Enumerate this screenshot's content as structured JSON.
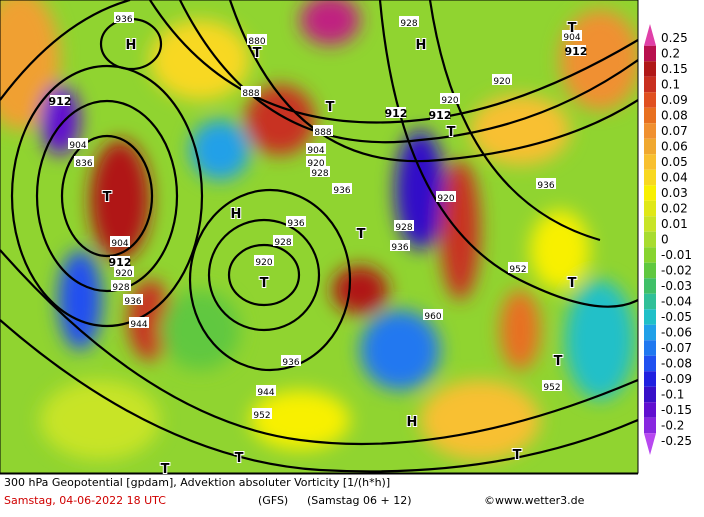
{
  "header": {
    "line1": "300 hPa Geopotential [gpdam], Advektion absoluter Vorticity [1/(h*h)]",
    "date": "Samstag, 04-06-2022  18 UTC",
    "model": "(GFS)",
    "run": "(Samstag 06 + 12)",
    "credit": "©www.wetter3.de"
  },
  "colorbar": {
    "labels": [
      "0.25",
      "0.2",
      "0.15",
      "0.1",
      "0.09",
      "0.08",
      "0.07",
      "0.06",
      "0.05",
      "0.04",
      "0.03",
      "0.02",
      "0.01",
      "0",
      "-0.01",
      "-0.02",
      "-0.03",
      "-0.04",
      "-0.05",
      "-0.06",
      "-0.07",
      "-0.08",
      "-0.09",
      "-0.1",
      "-0.15",
      "-0.2",
      "-0.25"
    ],
    "colors": [
      "#e040a8",
      "#b8104e",
      "#b01818",
      "#c83020",
      "#e05020",
      "#e87020",
      "#f09030",
      "#f0a830",
      "#f8c030",
      "#f8d820",
      "#f8f000",
      "#e0e818",
      "#c8e428",
      "#a8dc30",
      "#88d430",
      "#60c840",
      "#40c068",
      "#30c098",
      "#20c0c8",
      "#20a0e8",
      "#2078f0",
      "#2050f0",
      "#2020e0",
      "#3810c8",
      "#6010d0",
      "#8828e0",
      "#b848f0"
    ]
  },
  "map_labels": [
    "936",
    "880",
    "928",
    "904",
    "912",
    "912",
    "888",
    "888",
    "904",
    "920",
    "928",
    "912",
    "912",
    "920",
    "920",
    "904",
    "836",
    "936",
    "920",
    "936",
    "936",
    "928",
    "928",
    "904",
    "912",
    "920",
    "928",
    "936",
    "944",
    "920",
    "936",
    "952",
    "960",
    "936",
    "944",
    "952",
    "952"
  ],
  "centers": [
    "T",
    "H",
    "T",
    "H",
    "T",
    "T",
    "T",
    "H",
    "T",
    "T",
    "T",
    "T",
    "H",
    "T",
    "T",
    "T"
  ]
}
